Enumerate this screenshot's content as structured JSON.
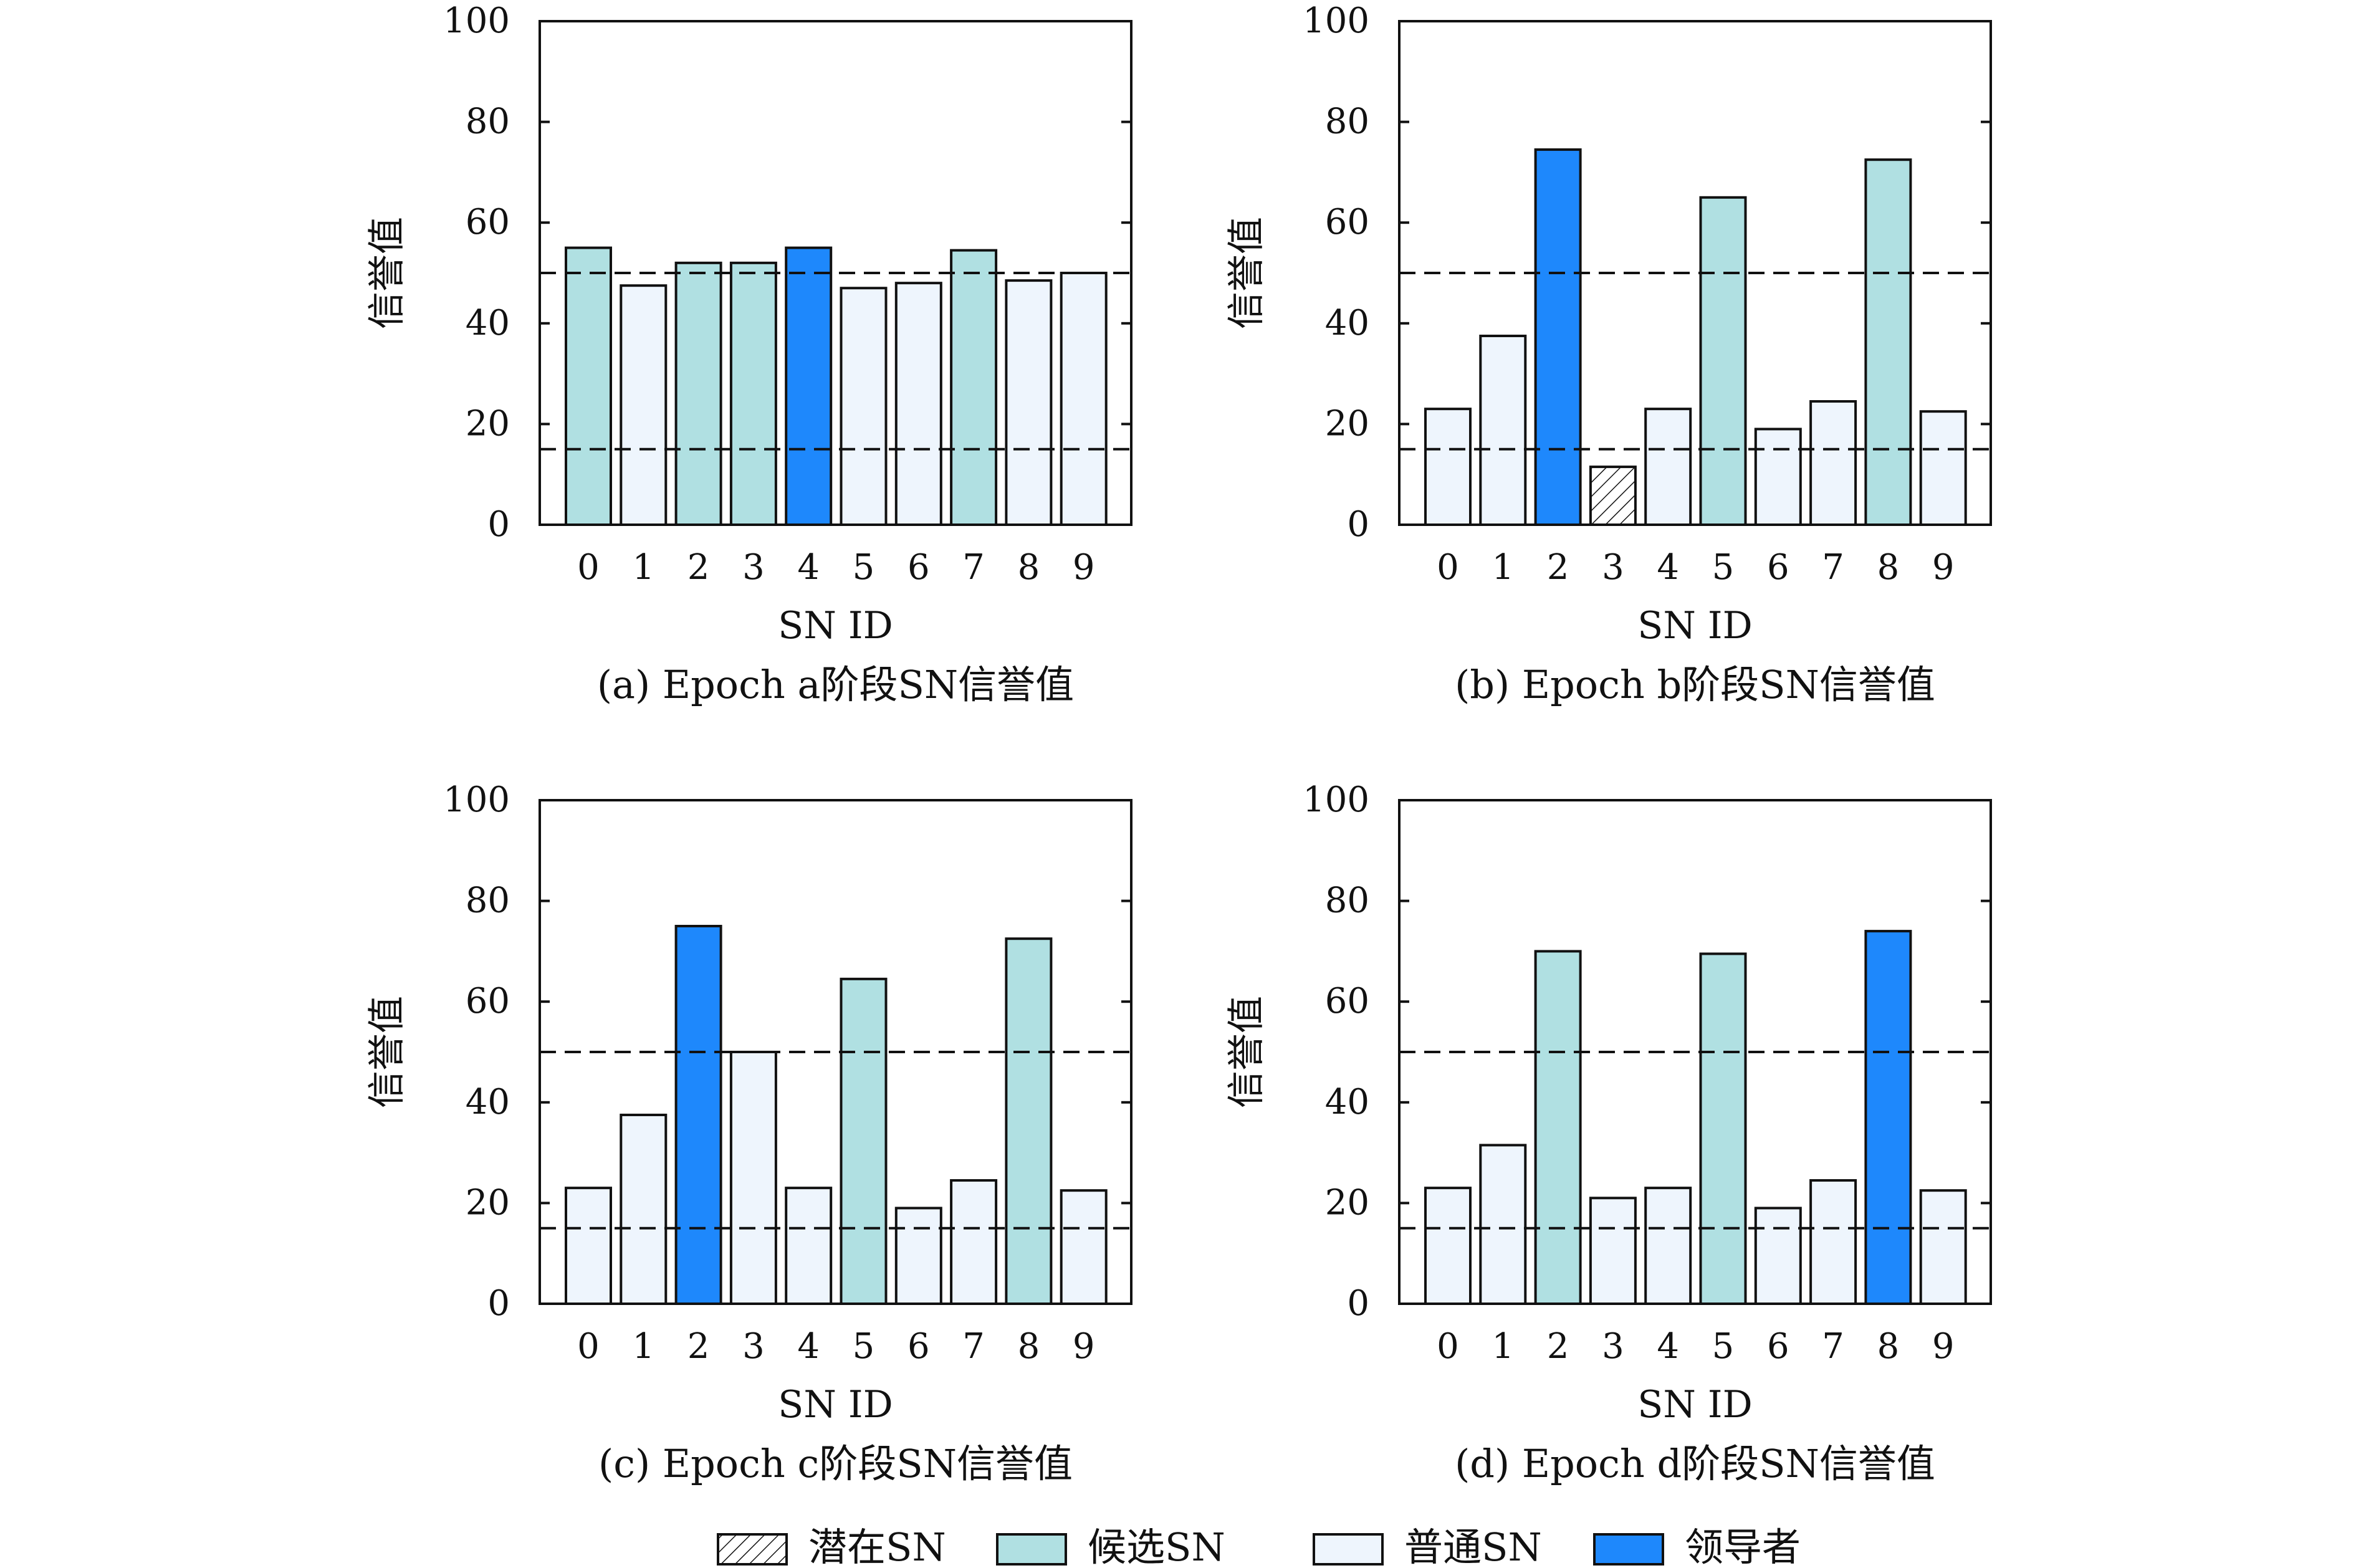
{
  "colors": {
    "potential": "#ffffff",
    "candidate": "#b0e0e2",
    "normal": "#eef5fd",
    "leader": "#1e88fc",
    "axis": "#111111"
  },
  "legend": {
    "items": [
      {
        "label": "潜在SN",
        "kind": "potential"
      },
      {
        "label": "候选SN",
        "kind": "candidate"
      },
      {
        "label": "普通SN",
        "kind": "normal"
      },
      {
        "label": "领导者",
        "kind": "leader"
      }
    ]
  },
  "chart_data": [
    {
      "type": "bar",
      "caption": "(a) Epoch a阶段SN信誉值",
      "xlabel": "SN ID",
      "ylabel": "信誉值",
      "ylim": [
        0,
        100
      ],
      "yticks": [
        0,
        20,
        40,
        60,
        80,
        100
      ],
      "categories": [
        "0",
        "1",
        "2",
        "3",
        "4",
        "5",
        "6",
        "7",
        "8",
        "9"
      ],
      "values": [
        55,
        47.5,
        52,
        52,
        55,
        47,
        48,
        54.5,
        48.5,
        50
      ],
      "kinds": [
        "candidate",
        "normal",
        "candidate",
        "candidate",
        "leader",
        "normal",
        "normal",
        "candidate",
        "normal",
        "normal"
      ],
      "thresholds": [
        50,
        15
      ]
    },
    {
      "type": "bar",
      "caption": "(b) Epoch b阶段SN信誉值",
      "xlabel": "SN ID",
      "ylabel": "信誉值",
      "ylim": [
        0,
        100
      ],
      "yticks": [
        0,
        20,
        40,
        60,
        80,
        100
      ],
      "categories": [
        "0",
        "1",
        "2",
        "3",
        "4",
        "5",
        "6",
        "7",
        "8",
        "9"
      ],
      "values": [
        23,
        37.5,
        74.5,
        11.5,
        23,
        65,
        19,
        24.5,
        72.5,
        22.5
      ],
      "kinds": [
        "normal",
        "normal",
        "leader",
        "potential",
        "normal",
        "candidate",
        "normal",
        "normal",
        "candidate",
        "normal"
      ],
      "thresholds": [
        50,
        15
      ]
    },
    {
      "type": "bar",
      "caption": "(c) Epoch c阶段SN信誉值",
      "xlabel": "SN ID",
      "ylabel": "信誉值",
      "ylim": [
        0,
        100
      ],
      "yticks": [
        0,
        20,
        40,
        60,
        80,
        100
      ],
      "categories": [
        "0",
        "1",
        "2",
        "3",
        "4",
        "5",
        "6",
        "7",
        "8",
        "9"
      ],
      "values": [
        23,
        37.5,
        75,
        50,
        23,
        64.5,
        19,
        24.5,
        72.5,
        22.5
      ],
      "kinds": [
        "normal",
        "normal",
        "leader",
        "normal",
        "normal",
        "candidate",
        "normal",
        "normal",
        "candidate",
        "normal"
      ],
      "thresholds": [
        50,
        15
      ]
    },
    {
      "type": "bar",
      "caption": "(d) Epoch d阶段SN信誉值",
      "xlabel": "SN ID",
      "ylabel": "信誉值",
      "ylim": [
        0,
        100
      ],
      "yticks": [
        0,
        20,
        40,
        60,
        80,
        100
      ],
      "categories": [
        "0",
        "1",
        "2",
        "3",
        "4",
        "5",
        "6",
        "7",
        "8",
        "9"
      ],
      "values": [
        23,
        31.5,
        70,
        21,
        23,
        69.5,
        19,
        24.5,
        74,
        22.5
      ],
      "kinds": [
        "normal",
        "normal",
        "candidate",
        "normal",
        "normal",
        "candidate",
        "normal",
        "normal",
        "leader",
        "normal"
      ],
      "thresholds": [
        50,
        15
      ]
    }
  ]
}
